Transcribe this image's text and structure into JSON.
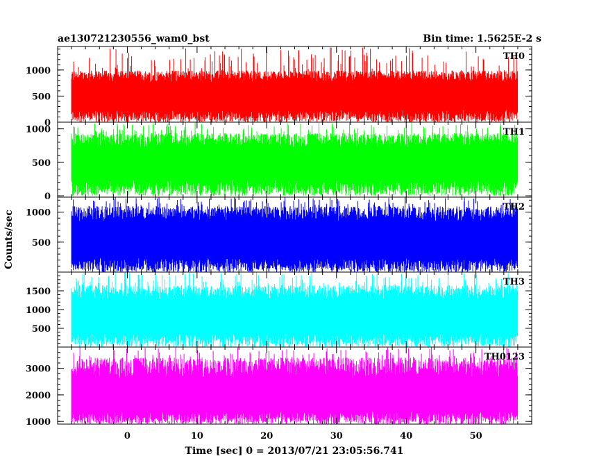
{
  "title_left": "ae130721230556_wam0_bst",
  "title_right": "Bin time: 1.5625E-2 s",
  "chart_data": {
    "type": "line",
    "title": "ae130721230556_wam0_bst",
    "subtitle": "Bin time: 1.5625E-2 s",
    "xlabel": "Time [sec] 0 = 2013/07/21 23:05:56.741",
    "ylabel": "Counts/sec",
    "xlim": [
      -10,
      58
    ],
    "x_ticks": [
      0,
      10,
      20,
      30,
      40,
      50
    ],
    "x_data_range": [
      -8,
      56
    ],
    "bin_time_s": 0.015625,
    "grid": false,
    "panels": [
      {
        "name": "TH0",
        "color": "#ff0000",
        "ylim": [
          0,
          1450
        ],
        "yticks": [
          0,
          500,
          1000
        ],
        "ytick_labels": [
          "0",
          "500",
          "1000"
        ],
        "typical_low": 200,
        "typical_high": 900,
        "min": 0,
        "max": 1450
      },
      {
        "name": "TH1",
        "color": "#00ff00",
        "ylim": [
          -20,
          1100
        ],
        "yticks": [
          0,
          500,
          1000
        ],
        "ytick_labels": [
          "0",
          "500",
          "1000"
        ],
        "typical_low": 200,
        "typical_high": 850,
        "min": 0,
        "max": 1100
      },
      {
        "name": "TH2",
        "color": "#0000ff",
        "ylim": [
          0,
          1250
        ],
        "yticks": [
          500,
          1000
        ],
        "ytick_labels": [
          "500",
          "1000"
        ],
        "typical_low": 200,
        "typical_high": 1000,
        "min": 0,
        "max": 1250
      },
      {
        "name": "TH3",
        "color": "#00ffff",
        "ylim": [
          0,
          2000
        ],
        "yticks": [
          500,
          1000,
          1500
        ],
        "ytick_labels": [
          "500",
          "1000",
          "1500"
        ],
        "typical_low": 300,
        "typical_high": 1500,
        "min": 0,
        "max": 2000
      },
      {
        "name": "TH0123",
        "color": "#ff00ff",
        "ylim": [
          900,
          3800
        ],
        "yticks": [
          1000,
          2000,
          3000
        ],
        "ytick_labels": [
          "1000",
          "2000",
          "3000"
        ],
        "typical_low": 1300,
        "typical_high": 3100,
        "min": 900,
        "max": 3800
      }
    ]
  }
}
